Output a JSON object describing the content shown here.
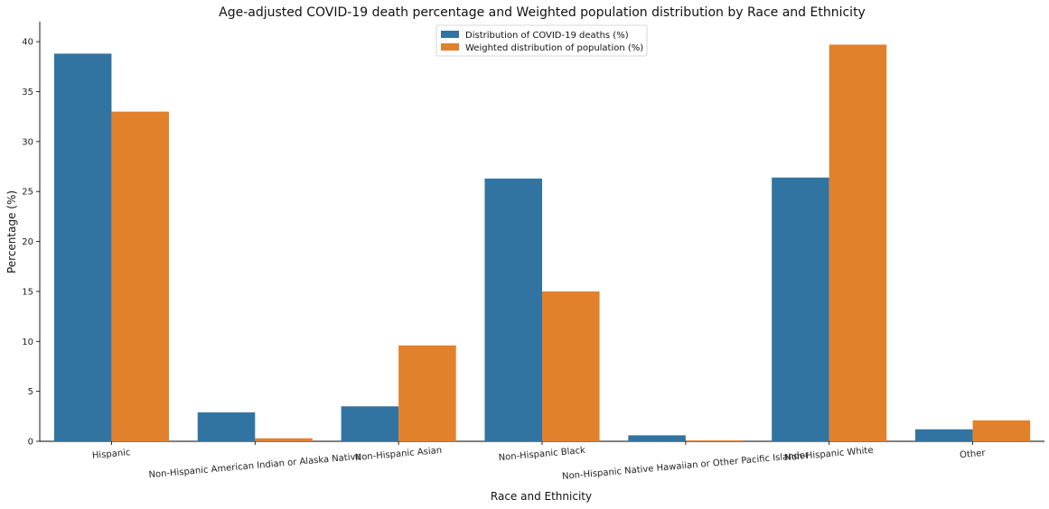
{
  "chart_data": {
    "type": "bar",
    "title": "Age-adjusted COVID-19 death percentage and Weighted population distribution by Race and Ethnicity",
    "xlabel": "Race and Ethnicity",
    "ylabel": "Percentage (%)",
    "ylim": [
      0,
      42
    ],
    "yticks": [
      0,
      5,
      10,
      15,
      20,
      25,
      30,
      35,
      40
    ],
    "grid": false,
    "legend_position": "top-center",
    "categories": [
      "Hispanic",
      "Non-Hispanic American Indian or Alaska Native",
      "Non-Hispanic Asian",
      "Non-Hispanic Black",
      "Non-Hispanic Native Hawaiian or Other Pacific Islander",
      "Non-Hispanic White",
      "Other"
    ],
    "series": [
      {
        "name": "Distribution of COVID-19 deaths (%)",
        "color": "#3274a1",
        "values": [
          38.8,
          2.9,
          3.5,
          26.3,
          0.6,
          26.4,
          1.2
        ]
      },
      {
        "name": "Weighted distribution of population (%)",
        "color": "#e1812c",
        "values": [
          33.0,
          0.3,
          9.6,
          15.0,
          0.1,
          39.7,
          2.1
        ]
      }
    ]
  }
}
